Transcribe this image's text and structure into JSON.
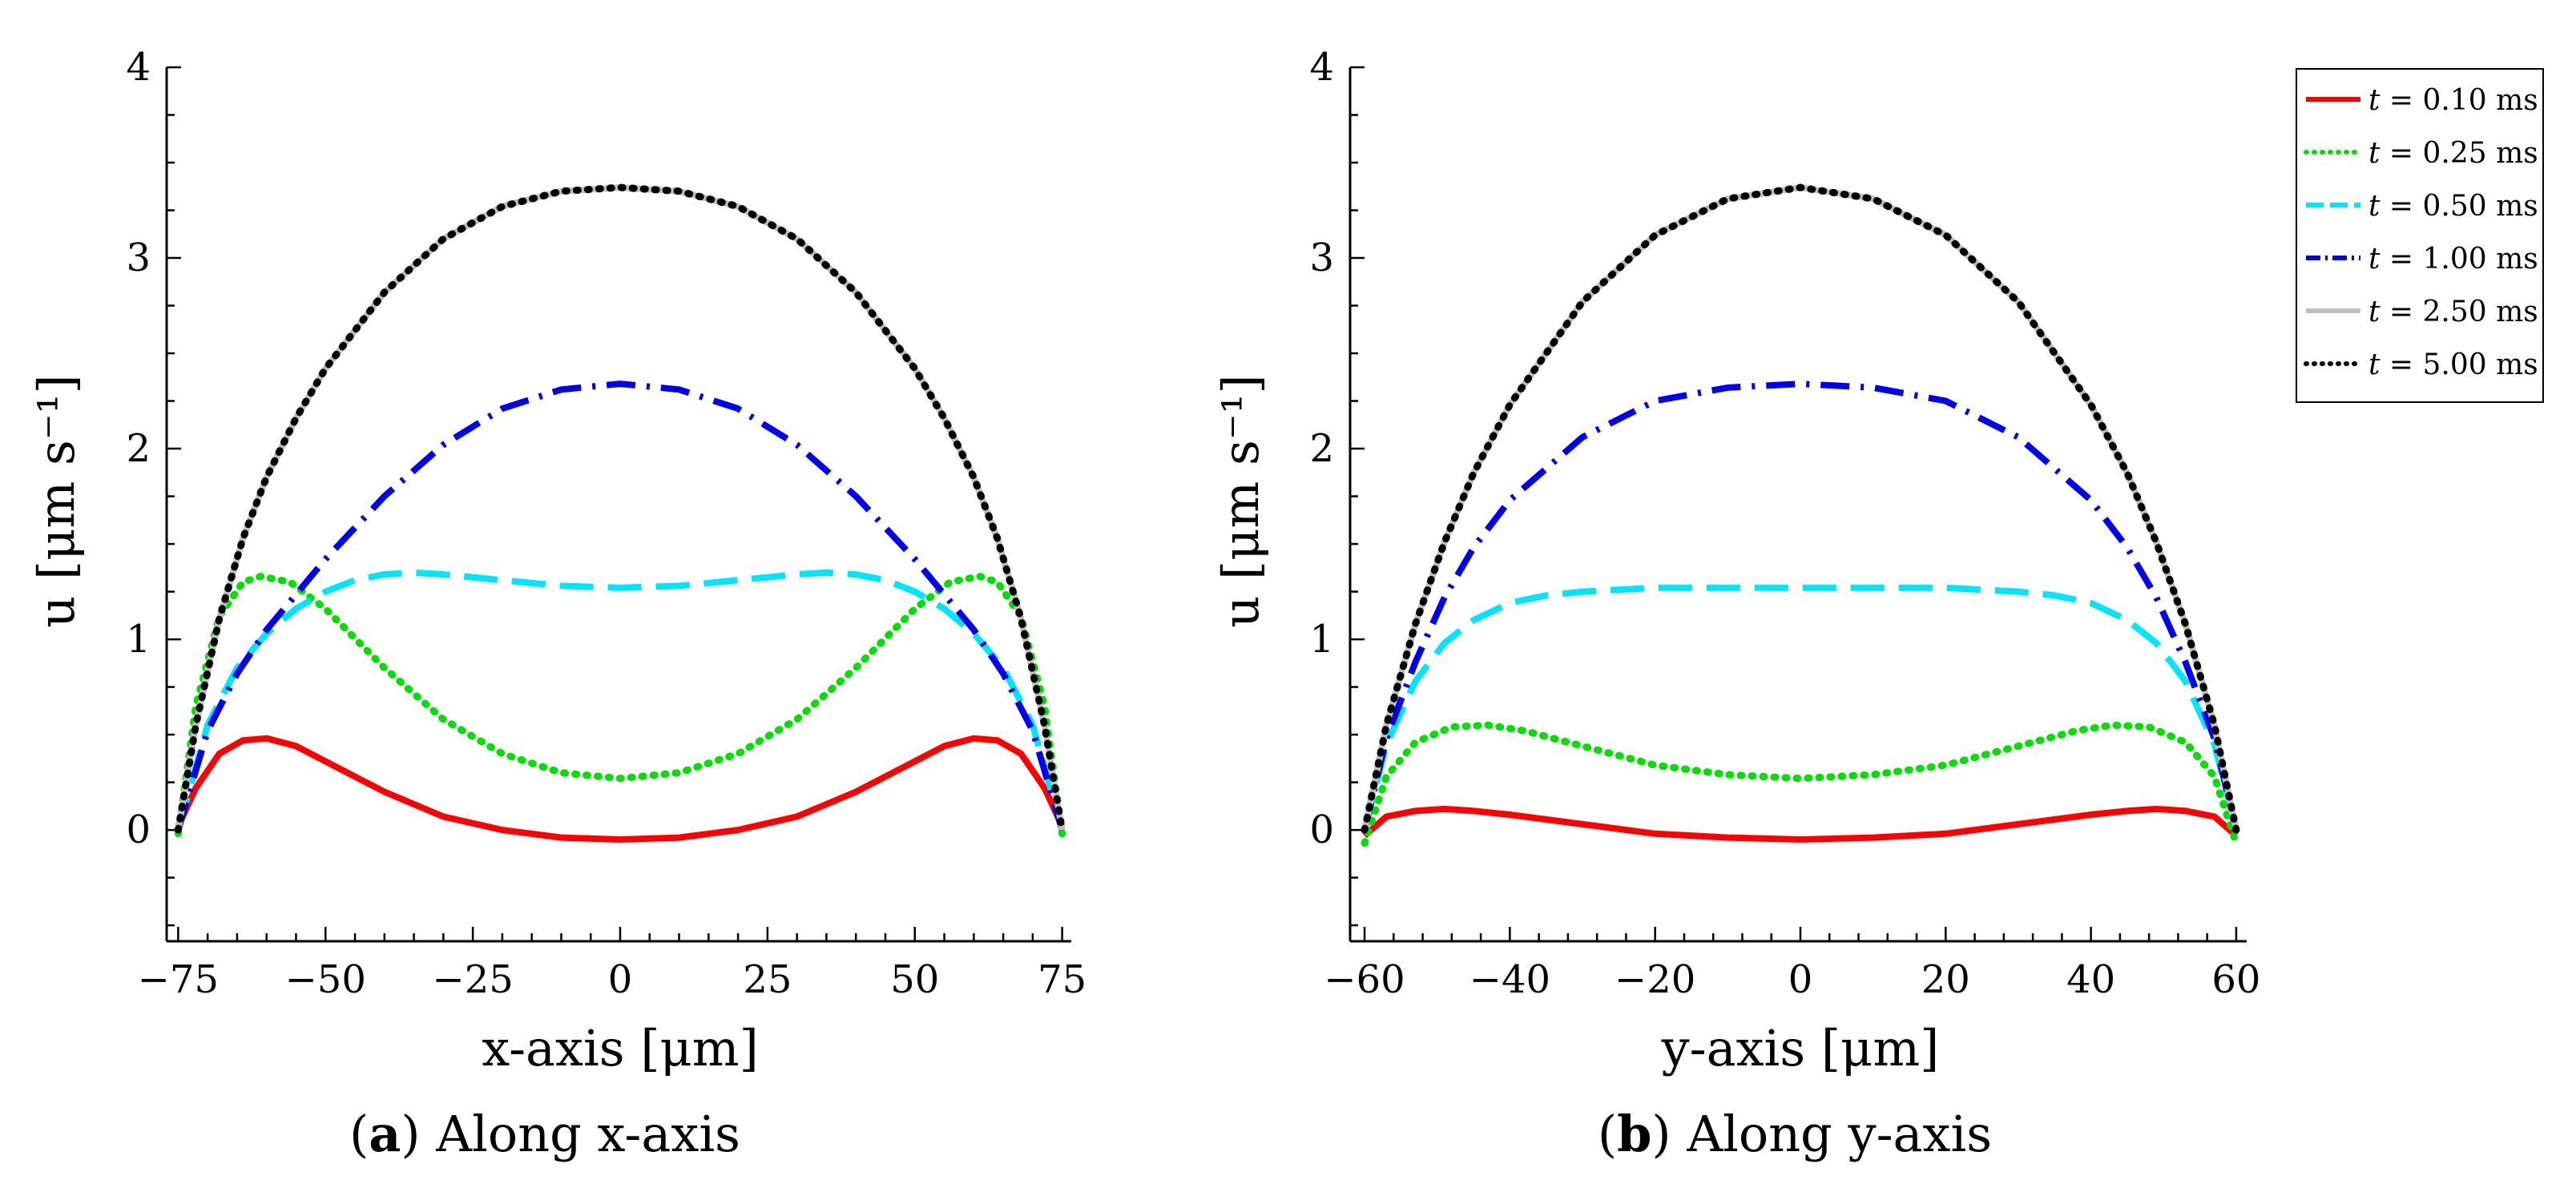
{
  "chart_data": [
    {
      "type": "line",
      "caption_letter": "a",
      "caption_text": "Along x-axis",
      "xlabel": "x-axis [μm]",
      "ylabel": "u [μm s⁻¹]",
      "xlim": [
        -76,
        76
      ],
      "ylim": [
        -0.55,
        4
      ],
      "xticks": [
        -75,
        -50,
        -25,
        0,
        25,
        50,
        75
      ],
      "xtick_labels": [
        "−75",
        "−50",
        "−25",
        "0",
        "25",
        "50",
        "75"
      ],
      "yticks": [
        0,
        1,
        2,
        3,
        4
      ],
      "ytick_labels": [
        "0",
        "1",
        "2",
        "3",
        "4"
      ],
      "series": [
        {
          "name": "t = 0.10 ms",
          "color": "#ff0000",
          "dash": "solid",
          "x": [
            -75,
            -72,
            -68,
            -64,
            -60,
            -55,
            -50,
            -40,
            -30,
            -20,
            -10,
            0,
            10,
            20,
            30,
            40,
            50,
            55,
            60,
            64,
            68,
            72,
            75
          ],
          "values": [
            0.02,
            0.22,
            0.4,
            0.47,
            0.48,
            0.44,
            0.36,
            0.2,
            0.07,
            0.0,
            -0.04,
            -0.05,
            -0.04,
            0.0,
            0.07,
            0.2,
            0.36,
            0.44,
            0.48,
            0.47,
            0.4,
            0.22,
            0.02
          ]
        },
        {
          "name": "t = 0.25 ms",
          "color": "#00e000",
          "dash": "dotted",
          "x": [
            -75,
            -72,
            -68,
            -64,
            -61,
            -56,
            -50,
            -40,
            -30,
            -20,
            -10,
            0,
            10,
            20,
            30,
            40,
            50,
            56,
            61,
            64,
            68,
            72,
            75
          ],
          "values": [
            -0.02,
            0.65,
            1.12,
            1.3,
            1.33,
            1.3,
            1.16,
            0.85,
            0.58,
            0.4,
            0.3,
            0.27,
            0.3,
            0.4,
            0.58,
            0.85,
            1.16,
            1.3,
            1.33,
            1.3,
            1.12,
            0.65,
            -0.02
          ]
        },
        {
          "name": "t = 0.50 ms",
          "color": "#00e5ff",
          "dash": "dashed",
          "x": [
            -75,
            -70,
            -65,
            -60,
            -55,
            -50,
            -45,
            -40,
            -35,
            -30,
            -20,
            -10,
            0,
            10,
            20,
            30,
            35,
            40,
            45,
            50,
            55,
            60,
            65,
            70,
            75
          ],
          "values": [
            0.0,
            0.55,
            0.85,
            1.03,
            1.16,
            1.25,
            1.31,
            1.34,
            1.35,
            1.34,
            1.31,
            1.28,
            1.27,
            1.28,
            1.31,
            1.34,
            1.35,
            1.34,
            1.31,
            1.25,
            1.16,
            1.03,
            0.85,
            0.55,
            0.0
          ]
        },
        {
          "name": "t = 1.00 ms",
          "color": "#0000ee",
          "dash": "dashdot",
          "x": [
            -75,
            -70,
            -65,
            -60,
            -50,
            -40,
            -30,
            -20,
            -10,
            0,
            10,
            20,
            30,
            40,
            50,
            60,
            65,
            70,
            75
          ],
          "values": [
            0.0,
            0.52,
            0.82,
            1.05,
            1.42,
            1.75,
            2.02,
            2.21,
            2.31,
            2.34,
            2.31,
            2.21,
            2.02,
            1.75,
            1.42,
            1.05,
            0.82,
            0.52,
            0.0
          ]
        },
        {
          "name": "t = 2.50 ms",
          "color": "#bfbfbf",
          "dash": "solid",
          "x": [
            -75,
            -72,
            -68,
            -64,
            -60,
            -55,
            -50,
            -40,
            -30,
            -20,
            -10,
            0,
            10,
            20,
            30,
            40,
            50,
            55,
            60,
            64,
            68,
            72,
            75
          ],
          "values": [
            0.0,
            0.55,
            1.11,
            1.53,
            1.85,
            2.16,
            2.42,
            2.82,
            3.1,
            3.27,
            3.35,
            3.37,
            3.35,
            3.27,
            3.1,
            2.82,
            2.42,
            2.16,
            1.85,
            1.53,
            1.11,
            0.55,
            0.0
          ]
        },
        {
          "name": "t = 5.00 ms",
          "color": "#000000",
          "dash": "dotted",
          "x": [
            -75,
            -72,
            -68,
            -64,
            -60,
            -55,
            -50,
            -40,
            -30,
            -20,
            -10,
            0,
            10,
            20,
            30,
            40,
            50,
            55,
            60,
            64,
            68,
            72,
            75
          ],
          "values": [
            0.0,
            0.55,
            1.11,
            1.53,
            1.85,
            2.16,
            2.42,
            2.82,
            3.1,
            3.27,
            3.35,
            3.37,
            3.35,
            3.27,
            3.1,
            2.82,
            2.42,
            2.16,
            1.85,
            1.53,
            1.11,
            0.55,
            0.0
          ]
        }
      ]
    },
    {
      "type": "line",
      "caption_letter": "b",
      "caption_text": "Along y-axis",
      "xlabel": "y-axis [μm]",
      "ylabel": "u [μm s⁻¹]",
      "xlim": [
        -61,
        61
      ],
      "ylim": [
        -0.55,
        4
      ],
      "xticks": [
        -60,
        -40,
        -20,
        0,
        20,
        40,
        60
      ],
      "xtick_labels": [
        "−60",
        "−40",
        "−20",
        "0",
        "20",
        "40",
        "60"
      ],
      "yticks": [
        0,
        1,
        2,
        3,
        4
      ],
      "ytick_labels": [
        "0",
        "1",
        "2",
        "3",
        "4"
      ],
      "series": [
        {
          "name": "t = 0.10 ms",
          "color": "#ff0000",
          "dash": "solid",
          "x": [
            -60,
            -57,
            -53,
            -49,
            -45,
            -40,
            -30,
            -20,
            -10,
            0,
            10,
            20,
            30,
            40,
            45,
            49,
            53,
            57,
            60
          ],
          "values": [
            -0.03,
            0.07,
            0.1,
            0.11,
            0.1,
            0.08,
            0.03,
            -0.02,
            -0.04,
            -0.05,
            -0.04,
            -0.02,
            0.03,
            0.08,
            0.1,
            0.11,
            0.1,
            0.07,
            -0.03
          ]
        },
        {
          "name": "t = 0.25 ms",
          "color": "#00e000",
          "dash": "dotted",
          "x": [
            -60,
            -57,
            -53,
            -48,
            -43,
            -38,
            -30,
            -20,
            -10,
            0,
            10,
            20,
            30,
            38,
            43,
            48,
            53,
            57,
            60
          ],
          "values": [
            -0.07,
            0.28,
            0.46,
            0.54,
            0.55,
            0.52,
            0.44,
            0.34,
            0.29,
            0.27,
            0.29,
            0.34,
            0.44,
            0.52,
            0.55,
            0.54,
            0.46,
            0.28,
            -0.07
          ]
        },
        {
          "name": "t = 0.50 ms",
          "color": "#00e5ff",
          "dash": "dashed",
          "x": [
            -60,
            -57,
            -53,
            -49,
            -45,
            -40,
            -35,
            -30,
            -20,
            -10,
            0,
            10,
            20,
            30,
            35,
            40,
            45,
            49,
            53,
            57,
            60
          ],
          "values": [
            0.0,
            0.45,
            0.78,
            0.98,
            1.1,
            1.19,
            1.23,
            1.25,
            1.27,
            1.27,
            1.27,
            1.27,
            1.27,
            1.25,
            1.23,
            1.19,
            1.1,
            0.98,
            0.78,
            0.45,
            0.0
          ]
        },
        {
          "name": "t = 1.00 ms",
          "color": "#0000ee",
          "dash": "dashdot",
          "x": [
            -60,
            -57,
            -53,
            -49,
            -45,
            -40,
            -30,
            -20,
            -10,
            0,
            10,
            20,
            30,
            40,
            45,
            49,
            53,
            57,
            60
          ],
          "values": [
            0.0,
            0.48,
            0.88,
            1.22,
            1.48,
            1.73,
            2.06,
            2.25,
            2.32,
            2.34,
            2.32,
            2.25,
            2.06,
            1.73,
            1.48,
            1.22,
            0.88,
            0.48,
            0.0
          ]
        },
        {
          "name": "t = 2.50 ms",
          "color": "#bfbfbf",
          "dash": "solid",
          "x": [
            -60,
            -57,
            -53,
            -49,
            -45,
            -40,
            -30,
            -20,
            -10,
            0,
            10,
            20,
            30,
            40,
            45,
            49,
            53,
            57,
            60
          ],
          "values": [
            0.0,
            0.55,
            1.08,
            1.51,
            1.87,
            2.23,
            2.77,
            3.12,
            3.31,
            3.37,
            3.31,
            3.12,
            2.77,
            2.23,
            1.87,
            1.51,
            1.08,
            0.55,
            0.0
          ]
        },
        {
          "name": "t = 5.00 ms",
          "color": "#000000",
          "dash": "dotted",
          "x": [
            -60,
            -57,
            -53,
            -49,
            -45,
            -40,
            -30,
            -20,
            -10,
            0,
            10,
            20,
            30,
            40,
            45,
            49,
            53,
            57,
            60
          ],
          "values": [
            0.0,
            0.55,
            1.08,
            1.51,
            1.87,
            2.23,
            2.77,
            3.12,
            3.31,
            3.37,
            3.31,
            3.12,
            2.77,
            2.23,
            1.87,
            1.51,
            1.08,
            0.55,
            0.0
          ]
        }
      ]
    }
  ],
  "legend": {
    "entries": [
      {
        "t_symbol": "t",
        "text": " = 0.10 ms",
        "color": "#ff0000",
        "dash": "solid"
      },
      {
        "t_symbol": "t",
        "text": " = 0.25 ms",
        "color": "#00e000",
        "dash": "dotted"
      },
      {
        "t_symbol": "t",
        "text": " = 0.50 ms",
        "color": "#00e5ff",
        "dash": "dashed"
      },
      {
        "t_symbol": "t",
        "text": " = 1.00 ms",
        "color": "#0000ee",
        "dash": "dashdot"
      },
      {
        "t_symbol": "t",
        "text": " = 2.50 ms",
        "color": "#bfbfbf",
        "dash": "solid"
      },
      {
        "t_symbol": "t",
        "text": " = 5.00 ms",
        "color": "#000000",
        "dash": "dotted"
      }
    ]
  }
}
